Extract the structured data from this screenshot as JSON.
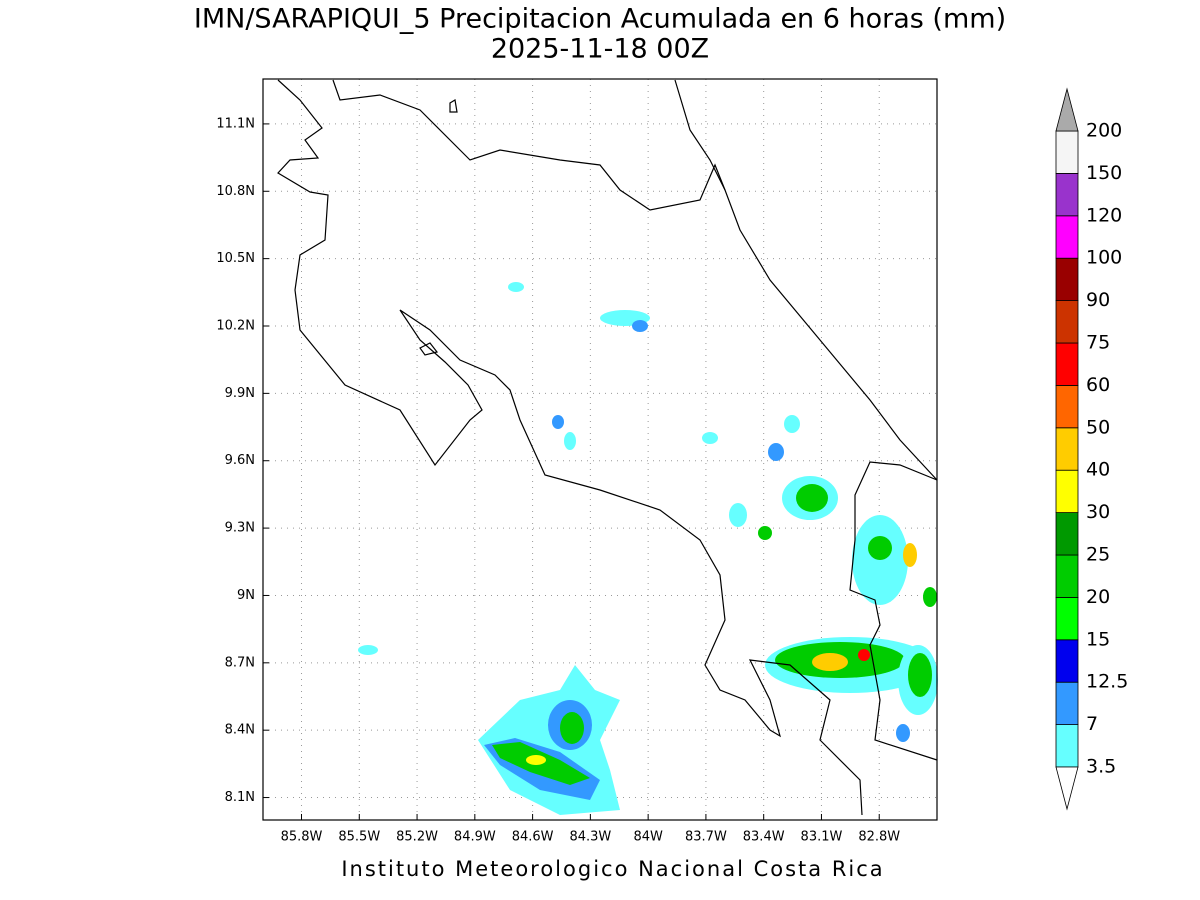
{
  "title": "IMN/SARAPIQUI_5 Precipitacion Acumulada en 6 horas (mm)",
  "subtitle": "2025-11-18 00Z",
  "map": {
    "xlim": [
      -86.0,
      -82.5
    ],
    "ylim": [
      8.0,
      11.3
    ],
    "grid": true,
    "lon_ticks": [
      {
        "value": -85.8,
        "label": "85.8W"
      },
      {
        "value": -85.5,
        "label": "85.5W"
      },
      {
        "value": -85.2,
        "label": "85.2W"
      },
      {
        "value": -84.9,
        "label": "84.9W"
      },
      {
        "value": -84.6,
        "label": "84.6W"
      },
      {
        "value": -84.3,
        "label": "84.3W"
      },
      {
        "value": -84.0,
        "label": "84W"
      },
      {
        "value": -83.7,
        "label": "83.7W"
      },
      {
        "value": -83.4,
        "label": "83.4W"
      },
      {
        "value": -83.1,
        "label": "83.1W"
      },
      {
        "value": -82.8,
        "label": "82.8W"
      }
    ],
    "lat_ticks": [
      {
        "value": 11.1,
        "label": "11.1N"
      },
      {
        "value": 10.8,
        "label": "10.8N"
      },
      {
        "value": 10.5,
        "label": "10.5N"
      },
      {
        "value": 10.2,
        "label": "10.2N"
      },
      {
        "value": 9.9,
        "label": "9.9N"
      },
      {
        "value": 9.6,
        "label": "9.6N"
      },
      {
        "value": 9.3,
        "label": "9.3N"
      },
      {
        "value": 9.0,
        "label": "9N"
      },
      {
        "value": 8.7,
        "label": "8.7N"
      },
      {
        "value": 8.4,
        "label": "8.4N"
      },
      {
        "value": 8.1,
        "label": "8.1N"
      }
    ]
  },
  "colorbar": {
    "levels": [
      3.5,
      7,
      12.5,
      15,
      20,
      25,
      30,
      40,
      50,
      60,
      75,
      90,
      100,
      120,
      150,
      200
    ],
    "colors": [
      "#66ffff",
      "#3399ff",
      "#0000ee",
      "#00ff00",
      "#00cc00",
      "#009900",
      "#ffff00",
      "#ffcc00",
      "#ff6600",
      "#ff0000",
      "#cc3300",
      "#990000",
      "#ff00ff",
      "#9933cc",
      "#f5f5f5"
    ],
    "under_color": "#ffffff",
    "over_color": "#aaaaaa"
  },
  "credit": "Instituto Meteorologico Nacional Costa Rica"
}
